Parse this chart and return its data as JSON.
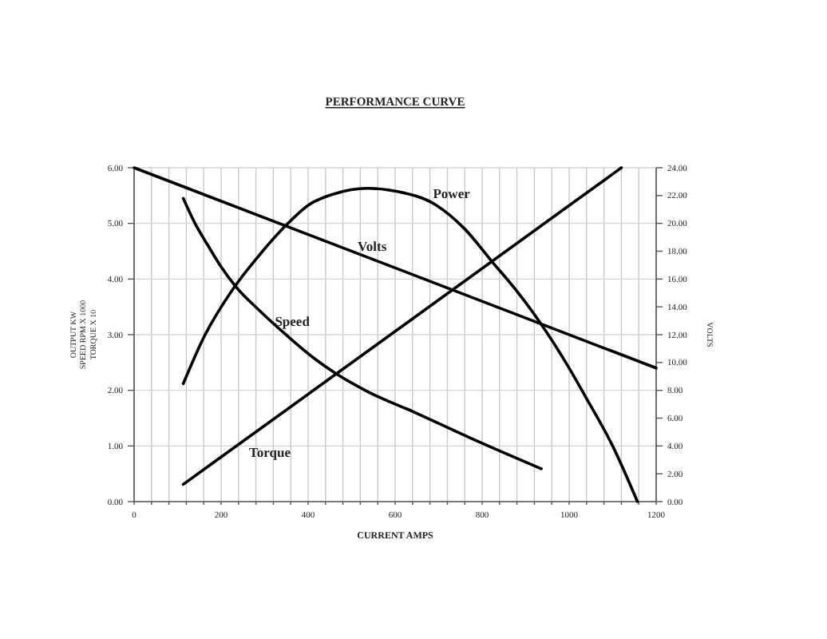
{
  "chart_data": {
    "type": "line",
    "title": "PERFORMANCE CURVE",
    "xlabel": "CURRENT AMPS",
    "ylabel": "OUTPUT KW\nSPEED RPM X 1000\nTORQUE X 10",
    "y2label": "VOLTS",
    "xlim": [
      0,
      1200
    ],
    "xticks": [
      0,
      {
        "value": 40,
        "label": null
      },
      {
        "value": 80,
        "label": null
      },
      {
        "value": 120,
        "label": null
      },
      {
        "value": 160,
        "label": null
      },
      200,
      {
        "value": 240,
        "label": null
      },
      {
        "value": 280,
        "label": null
      },
      {
        "value": 320,
        "label": null
      },
      {
        "value": 360,
        "label": null
      },
      400,
      {
        "value": 440,
        "label": null
      },
      {
        "value": 480,
        "label": null
      },
      {
        "value": 520,
        "label": null
      },
      {
        "value": 560,
        "label": null
      },
      600,
      {
        "value": 640,
        "label": null
      },
      {
        "value": 680,
        "label": null
      },
      {
        "value": 720,
        "label": null
      },
      {
        "value": 760,
        "label": null
      },
      800,
      {
        "value": 840,
        "label": null
      },
      {
        "value": 880,
        "label": null
      },
      {
        "value": 920,
        "label": null
      },
      {
        "value": 960,
        "label": null
      },
      1000,
      {
        "value": 1040,
        "label": null
      },
      {
        "value": 1080,
        "label": null
      },
      {
        "value": 1120,
        "label": null
      },
      {
        "value": 1160,
        "label": null
      },
      1200
    ],
    "ylim": [
      0,
      6
    ],
    "yticks": [
      {
        "value": 0,
        "label": "0.00"
      },
      {
        "value": 1,
        "label": "1.00"
      },
      {
        "value": 2,
        "label": "2.00"
      },
      {
        "value": 3,
        "label": "3.00"
      },
      {
        "value": 4,
        "label": "4.00"
      },
      {
        "value": 5,
        "label": "5.00"
      },
      {
        "value": 6,
        "label": "6.00"
      }
    ],
    "y2lim": [
      0,
      24
    ],
    "y2ticks": [
      {
        "value": 0,
        "label": "0.00"
      },
      {
        "value": 2,
        "label": "2.00"
      },
      {
        "value": 4,
        "label": "4.00"
      },
      {
        "value": 6,
        "label": "6.00"
      },
      {
        "value": 8,
        "label": "8.00"
      },
      {
        "value": 10,
        "label": "10.00"
      },
      {
        "value": 12,
        "label": "12.00"
      },
      {
        "value": 14,
        "label": "14.00"
      },
      {
        "value": 16,
        "label": "16.00"
      },
      {
        "value": 18,
        "label": "18.00"
      },
      {
        "value": 20,
        "label": "20.00"
      },
      {
        "value": 22,
        "label": "22.00"
      },
      {
        "value": 24,
        "label": "24.00"
      }
    ],
    "grid": true,
    "marker": "none",
    "line_style": "solid",
    "series": [
      {
        "name": "Power",
        "color": "#000000",
        "x": [
          113,
          160,
          229,
          290,
          346,
          401,
          460,
          536,
          600,
          694,
          760,
          822,
          880,
          933,
          1000,
          1038,
          1100,
          1157
        ],
        "values": [
          2.12,
          2.95,
          3.84,
          4.45,
          4.94,
          5.33,
          5.53,
          5.63,
          5.58,
          5.33,
          4.9,
          4.32,
          3.78,
          3.22,
          2.4,
          1.88,
          1.0,
          0
        ]
      },
      {
        "name": "Volts",
        "color": "#000000",
        "axis": "y2",
        "x": [
          0,
          600,
          1200
        ],
        "values": [
          24,
          16.8,
          9.6
        ]
      },
      {
        "name": "Speed",
        "color": "#000000",
        "x": [
          113,
          140,
          170,
          200,
          233,
          290,
          352,
          413,
          462,
          536,
          646,
          800,
          936
        ],
        "values": [
          5.45,
          5.0,
          4.6,
          4.22,
          3.87,
          3.42,
          2.98,
          2.58,
          2.31,
          1.98,
          1.6,
          1.05,
          0.59
        ]
      },
      {
        "name": "Torque",
        "color": "#000000",
        "x": [
          113,
          646,
          1120
        ],
        "values": [
          0.31,
          3.32,
          6.0
        ]
      }
    ]
  }
}
